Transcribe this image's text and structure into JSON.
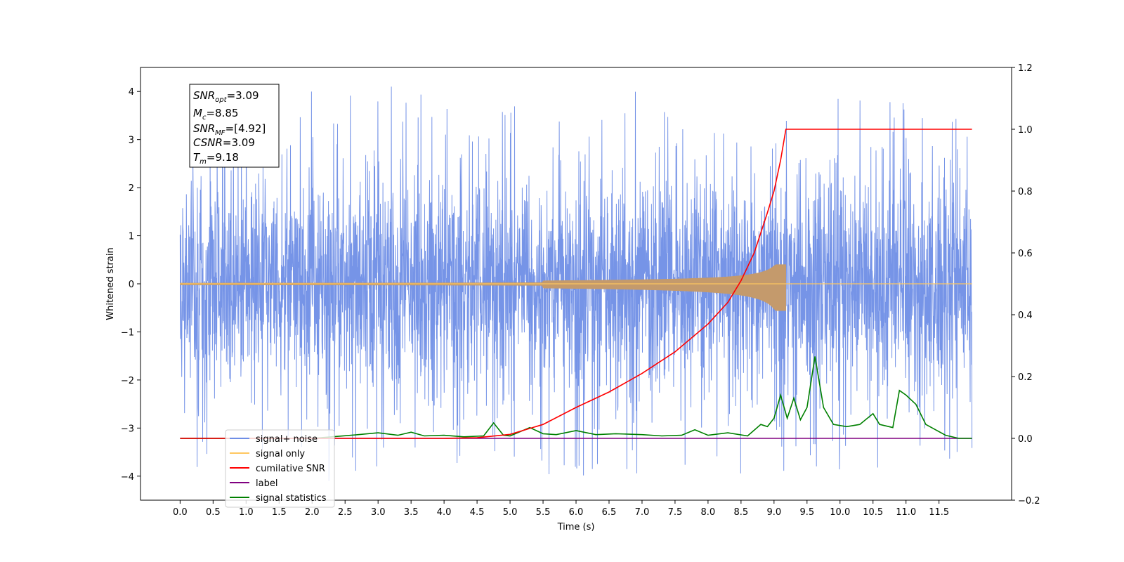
{
  "chart_data": {
    "type": "line",
    "xlabel": "Time (s)",
    "ylabel": "Whitened strain",
    "xlim": [
      -0.6,
      12.6
    ],
    "ylim": [
      -4.5,
      4.5
    ],
    "y2lim": [
      -0.2,
      1.2
    ],
    "x_ticks": [
      "0.0",
      "0.5",
      "1.0",
      "1.5",
      "2.0",
      "2.5",
      "3.0",
      "3.5",
      "4.0",
      "4.5",
      "5.0",
      "5.5",
      "6.0",
      "6.5",
      "7.0",
      "7.5",
      "8.0",
      "8.5",
      "9.0",
      "9.5",
      "10.0",
      "10.5",
      "11.0",
      "11.5"
    ],
    "y_ticks": [
      "-4",
      "-3",
      "-2",
      "-1",
      "0",
      "1",
      "2",
      "3",
      "4"
    ],
    "y2_ticks": [
      "-0.2",
      "0.0",
      "0.2",
      "0.4",
      "0.6",
      "0.8",
      "1.0",
      "1.2"
    ],
    "noise": {
      "x_start": 0.0,
      "x_end": 12.0,
      "typical_envelope": [
        -2.0,
        2.0
      ],
      "min": -4.1,
      "max": 4.1
    },
    "signal_chirp": {
      "merger_time": 9.18,
      "peak_amplitude": 0.4,
      "end_time": 12.0
    },
    "series": [
      {
        "name": "cumilative SNR",
        "axis": "right",
        "x": [
          0.0,
          4.0,
          4.5,
          5.0,
          5.5,
          6.0,
          6.5,
          7.0,
          7.5,
          8.0,
          8.3,
          8.5,
          8.7,
          8.9,
          9.0,
          9.1,
          9.18,
          12.0
        ],
        "y": [
          0.0,
          0.0,
          0.002,
          0.013,
          0.045,
          0.1,
          0.15,
          0.21,
          0.28,
          0.37,
          0.44,
          0.51,
          0.6,
          0.73,
          0.8,
          0.9,
          1.0,
          1.0
        ]
      },
      {
        "name": "label",
        "axis": "right",
        "x": [
          0.0,
          12.0
        ],
        "y": [
          0.0,
          0.0
        ]
      },
      {
        "name": "signal statistics",
        "axis": "right",
        "x": [
          0.0,
          2.0,
          2.3,
          2.7,
          3.0,
          3.3,
          3.5,
          3.7,
          4.0,
          4.3,
          4.6,
          4.75,
          4.9,
          5.0,
          5.3,
          5.5,
          5.7,
          6.0,
          6.3,
          6.6,
          7.0,
          7.3,
          7.6,
          7.8,
          8.0,
          8.3,
          8.6,
          8.8,
          8.9,
          9.0,
          9.1,
          9.2,
          9.3,
          9.4,
          9.5,
          9.62,
          9.75,
          9.9,
          10.1,
          10.3,
          10.5,
          10.6,
          10.8,
          10.9,
          11.0,
          11.15,
          11.3,
          11.6,
          11.8,
          12.0
        ],
        "y": [
          0.0,
          0.0,
          0.005,
          0.012,
          0.018,
          0.01,
          0.02,
          0.008,
          0.01,
          0.005,
          0.008,
          0.05,
          0.01,
          0.008,
          0.035,
          0.015,
          0.012,
          0.025,
          0.012,
          0.015,
          0.012,
          0.008,
          0.01,
          0.028,
          0.01,
          0.018,
          0.008,
          0.045,
          0.038,
          0.065,
          0.14,
          0.065,
          0.13,
          0.06,
          0.1,
          0.265,
          0.1,
          0.045,
          0.038,
          0.045,
          0.08,
          0.045,
          0.035,
          0.155,
          0.14,
          0.11,
          0.045,
          0.01,
          0.0,
          0.0
        ]
      }
    ],
    "legend": {
      "placement": "lower-left",
      "entries": [
        {
          "name": "signal+ noise",
          "color": "#6f8ee6"
        },
        {
          "name": "signal only",
          "color": "#ffc760"
        },
        {
          "name": "cumilative SNR",
          "color": "#ff0000"
        },
        {
          "name": "label",
          "color": "#800080"
        },
        {
          "name": "signal statistics",
          "color": "#008000"
        }
      ]
    },
    "annotation": {
      "placement": "top-left",
      "lines": [
        {
          "base": "SNR",
          "sub": "opt",
          "value": "=3.09"
        },
        {
          "base": "M",
          "sub": "c",
          "value": "=8.85"
        },
        {
          "base": "SNR",
          "sub": "MF",
          "value": "=[4.92]"
        },
        {
          "base": "CSNR",
          "sub": "",
          "value": "=3.09"
        },
        {
          "base": "T",
          "sub": "m",
          "value": "=9.18"
        }
      ]
    },
    "colors": {
      "noise": "#6f8ee6",
      "signal": "#ffc760",
      "signal_overlap": "#c49a6c",
      "snr": "#ff0000",
      "label": "#800080",
      "stats": "#008000"
    }
  }
}
